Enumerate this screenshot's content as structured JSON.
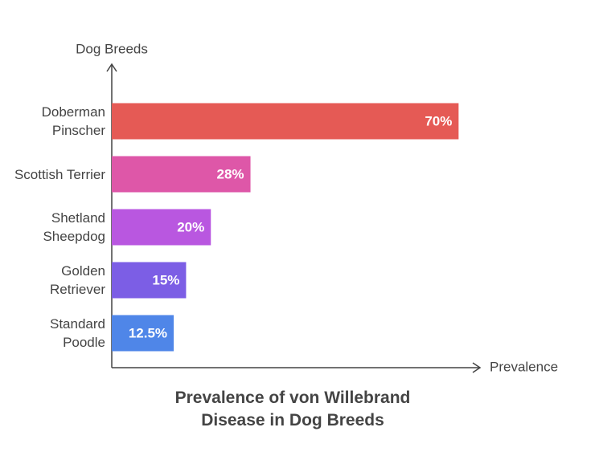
{
  "chart_data": {
    "type": "barh",
    "title": "Prevalence of von Willebrand Disease in Dog Breeds",
    "y_label": "Dog Breeds",
    "x_label": "Prevalence",
    "categories": [
      "Doberman Pinscher",
      "Scottish Terrier",
      "Shetland Sheepdog",
      "Golden Retriever",
      "Standard Poodle"
    ],
    "values": [
      70,
      28,
      20,
      15,
      12.5
    ],
    "value_labels": [
      "70%",
      "28%",
      "20%",
      "15%",
      "12.5%"
    ],
    "colors": [
      "#e55a55",
      "#de57a8",
      "#b957e0",
      "#7c5ee5",
      "#4f86e8"
    ],
    "xlim": [
      0,
      74
    ]
  }
}
